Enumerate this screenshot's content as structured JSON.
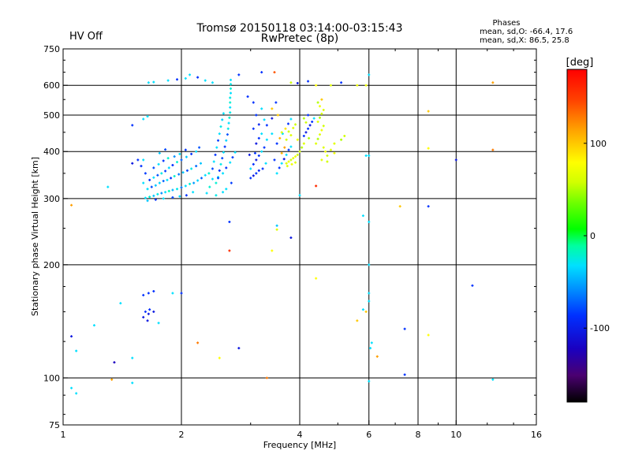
{
  "header": {
    "title": "Tromsø 20150118 03:14:00-03:15:43",
    "subtitle": "RwPretec (8p)",
    "status": "HV Off",
    "status_color": "#e00000",
    "phase_block": {
      "heading": "Phases",
      "line1": "mean, sd,O: -66.4, 17.6",
      "line2": "mean, sd,X:  86.5, 25.8"
    }
  },
  "colorbar": {
    "label": "[deg]",
    "ticks": [
      {
        "value": 100,
        "label": "100"
      },
      {
        "value": 0,
        "label": "0"
      },
      {
        "value": -100,
        "label": "-100"
      }
    ],
    "range": [
      -180,
      180
    ]
  },
  "chart_data": {
    "type": "scatter",
    "title": "Tromsø 20150118 03:14:00-03:15:43",
    "subtitle": "RwPretec (8p)",
    "xlabel": "Frequency [MHz]",
    "ylabel": "Stationary phase Virtual Height [km]",
    "xscale": "log",
    "yscale": "log",
    "xlim": [
      1,
      16
    ],
    "ylim": [
      75,
      750
    ],
    "xticks": [
      {
        "value": 1,
        "label": "1"
      },
      {
        "value": 2,
        "label": "2"
      },
      {
        "value": 4,
        "label": "4"
      },
      {
        "value": 6,
        "label": "6"
      },
      {
        "value": 8,
        "label": "8"
      },
      {
        "value": 10,
        "label": "10"
      },
      {
        "value": 16,
        "label": "16"
      }
    ],
    "yticks": [
      {
        "value": 75,
        "label": "75"
      },
      {
        "value": 100,
        "label": "100"
      },
      {
        "value": 200,
        "label": "200"
      },
      {
        "value": 300,
        "label": "300"
      },
      {
        "value": 400,
        "label": "400"
      },
      {
        "value": 500,
        "label": "500"
      },
      {
        "value": 600,
        "label": "600"
      },
      {
        "value": 750,
        "label": "750"
      }
    ],
    "vgrid": [
      2,
      4,
      6,
      8,
      10
    ],
    "hgrid": [
      100,
      200,
      300,
      400,
      500,
      600
    ],
    "grid": true,
    "color_by": "phase [deg]",
    "points": [
      [
        1.62,
        301,
        -30
      ],
      [
        1.66,
        303,
        -20
      ],
      [
        1.7,
        305,
        -40
      ],
      [
        1.74,
        308,
        -25
      ],
      [
        1.78,
        310,
        -60
      ],
      [
        1.82,
        312,
        -30
      ],
      [
        1.86,
        314,
        -15
      ],
      [
        1.9,
        316,
        -45
      ],
      [
        1.95,
        318,
        -25
      ],
      [
        2.0,
        321,
        -70
      ],
      [
        2.05,
        324,
        -30
      ],
      [
        2.1,
        328,
        -20
      ],
      [
        2.15,
        330,
        -55
      ],
      [
        2.2,
        335,
        -35
      ],
      [
        2.25,
        340,
        -80
      ],
      [
        2.3,
        346,
        -30
      ],
      [
        2.35,
        350,
        -20
      ],
      [
        1.64,
        318,
        -30
      ],
      [
        1.68,
        322,
        -90
      ],
      [
        1.72,
        325,
        -40
      ],
      [
        1.76,
        330,
        -35
      ],
      [
        1.8,
        334,
        -80
      ],
      [
        1.84,
        336,
        -30
      ],
      [
        1.88,
        340,
        -100
      ],
      [
        1.92,
        344,
        -20
      ],
      [
        1.97,
        348,
        -70
      ],
      [
        2.02,
        352,
        -40
      ],
      [
        2.07,
        356,
        -90
      ],
      [
        2.12,
        360,
        -25
      ],
      [
        2.18,
        366,
        -75
      ],
      [
        2.24,
        372,
        -40
      ],
      [
        1.66,
        336,
        -100
      ],
      [
        1.7,
        341,
        -30
      ],
      [
        1.74,
        346,
        -85
      ],
      [
        1.78,
        350,
        -25
      ],
      [
        1.82,
        355,
        -95
      ],
      [
        1.86,
        362,
        -35
      ],
      [
        1.9,
        368,
        -100
      ],
      [
        1.95,
        375,
        -20
      ],
      [
        2.0,
        380,
        -80
      ],
      [
        2.06,
        387,
        -40
      ],
      [
        2.12,
        394,
        -100
      ],
      [
        2.18,
        400,
        -30
      ],
      [
        2.22,
        410,
        -85
      ],
      [
        1.7,
        362,
        -90
      ],
      [
        1.75,
        370,
        -30
      ],
      [
        1.8,
        378,
        -100
      ],
      [
        1.85,
        384,
        -20
      ],
      [
        1.92,
        388,
        -60
      ],
      [
        1.98,
        394,
        -30
      ],
      [
        2.05,
        404,
        -100
      ],
      [
        1.76,
        396,
        -40
      ],
      [
        1.82,
        405,
        -90
      ],
      [
        1.6,
        380,
        -30
      ],
      [
        1.58,
        366,
        -100
      ],
      [
        1.62,
        350,
        -95
      ],
      [
        1.6,
        330,
        -30
      ],
      [
        1.64,
        296,
        -40
      ],
      [
        1.72,
        298,
        -100
      ],
      [
        1.8,
        300,
        -30
      ],
      [
        1.9,
        302,
        -90
      ],
      [
        1.98,
        304,
        -35
      ],
      [
        2.06,
        306,
        -100
      ],
      [
        2.14,
        312,
        -30
      ],
      [
        2.45,
        330,
        -20
      ],
      [
        2.48,
        342,
        -30
      ],
      [
        2.5,
        356,
        -100
      ],
      [
        2.52,
        370,
        -25
      ],
      [
        2.54,
        384,
        -90
      ],
      [
        2.56,
        398,
        -30
      ],
      [
        2.58,
        412,
        -100
      ],
      [
        2.6,
        428,
        -35
      ],
      [
        2.62,
        444,
        -85
      ],
      [
        2.63,
        460,
        -25
      ],
      [
        2.64,
        476,
        -30
      ],
      [
        2.65,
        492,
        -20
      ],
      [
        2.66,
        508,
        -25
      ],
      [
        2.66,
        524,
        -30
      ],
      [
        2.66,
        540,
        -20
      ],
      [
        2.66,
        556,
        -25
      ],
      [
        2.67,
        572,
        -30
      ],
      [
        2.67,
        588,
        -20
      ],
      [
        2.67,
        604,
        -25
      ],
      [
        2.67,
        620,
        -30
      ],
      [
        2.4,
        360,
        -90
      ],
      [
        2.42,
        376,
        -30
      ],
      [
        2.44,
        392,
        -100
      ],
      [
        2.46,
        410,
        -30
      ],
      [
        2.48,
        428,
        -95
      ],
      [
        2.5,
        446,
        -30
      ],
      [
        2.52,
        466,
        -25
      ],
      [
        2.54,
        486,
        -35
      ],
      [
        2.56,
        505,
        -30
      ],
      [
        2.4,
        338,
        -30
      ],
      [
        2.36,
        322,
        -20
      ],
      [
        2.32,
        310,
        -30
      ],
      [
        2.48,
        340,
        -90
      ],
      [
        2.55,
        350,
        -30
      ],
      [
        2.6,
        362,
        -100
      ],
      [
        2.66,
        374,
        -30
      ],
      [
        2.7,
        386,
        -95
      ],
      [
        2.74,
        398,
        -30
      ],
      [
        2.6,
        318,
        -30
      ],
      [
        2.68,
        330,
        -95
      ],
      [
        2.45,
        306,
        -25
      ],
      [
        2.55,
        312,
        -30
      ],
      [
        3.0,
        340,
        -100
      ],
      [
        3.05,
        345,
        -110
      ],
      [
        3.1,
        350,
        -100
      ],
      [
        3.15,
        356,
        -105
      ],
      [
        3.0,
        360,
        -30
      ],
      [
        3.05,
        370,
        -100
      ],
      [
        3.1,
        380,
        -110
      ],
      [
        3.15,
        390,
        -100
      ],
      [
        3.2,
        400,
        -30
      ],
      [
        3.25,
        410,
        -100
      ],
      [
        3.1,
        420,
        -110
      ],
      [
        3.15,
        434,
        -100
      ],
      [
        3.2,
        446,
        -30
      ],
      [
        3.05,
        460,
        -100
      ],
      [
        3.15,
        472,
        -105
      ],
      [
        3.25,
        486,
        -30
      ],
      [
        3.1,
        500,
        -100
      ],
      [
        3.2,
        520,
        -30
      ],
      [
        3.05,
        540,
        -100
      ],
      [
        2.95,
        560,
        -100
      ],
      [
        3.3,
        430,
        -30
      ],
      [
        3.4,
        446,
        -30
      ],
      [
        3.3,
        470,
        -100
      ],
      [
        3.4,
        490,
        -110
      ],
      [
        2.98,
        392,
        -110
      ],
      [
        3.08,
        396,
        -100
      ],
      [
        3.22,
        360,
        -100
      ],
      [
        3.28,
        372,
        -30
      ],
      [
        3.5,
        350,
        -30
      ],
      [
        3.55,
        362,
        -100
      ],
      [
        3.6,
        372,
        -30
      ],
      [
        3.65,
        382,
        -110
      ],
      [
        3.7,
        392,
        -30
      ],
      [
        3.75,
        404,
        -100
      ],
      [
        3.8,
        412,
        -30
      ],
      [
        3.5,
        420,
        -100
      ],
      [
        3.56,
        434,
        130
      ],
      [
        3.62,
        446,
        -30
      ],
      [
        3.68,
        460,
        110
      ],
      [
        3.74,
        474,
        -100
      ],
      [
        3.8,
        488,
        -30
      ],
      [
        3.6,
        396,
        130
      ],
      [
        3.66,
        410,
        140
      ],
      [
        3.45,
        380,
        -100
      ],
      [
        3.52,
        500,
        120
      ],
      [
        3.48,
        540,
        -100
      ],
      [
        3.4,
        520,
        120
      ],
      [
        3.45,
        650,
        160
      ],
      [
        3.7,
        372,
        80
      ],
      [
        3.75,
        376,
        90
      ],
      [
        3.8,
        380,
        70
      ],
      [
        3.85,
        384,
        80
      ],
      [
        3.9,
        388,
        90
      ],
      [
        3.95,
        392,
        70
      ],
      [
        3.72,
        366,
        80
      ],
      [
        3.82,
        370,
        90
      ],
      [
        3.9,
        374,
        80
      ],
      [
        4.0,
        400,
        70
      ],
      [
        4.05,
        410,
        60
      ],
      [
        4.1,
        420,
        80
      ],
      [
        3.95,
        430,
        90
      ],
      [
        3.8,
        442,
        80
      ],
      [
        3.75,
        452,
        70
      ],
      [
        3.85,
        462,
        80
      ],
      [
        3.9,
        472,
        70
      ],
      [
        3.6,
        450,
        80
      ],
      [
        3.7,
        430,
        70
      ],
      [
        4.1,
        440,
        -100
      ],
      [
        4.15,
        450,
        -110
      ],
      [
        4.2,
        460,
        -100
      ],
      [
        4.25,
        470,
        -110
      ],
      [
        4.3,
        480,
        -100
      ],
      [
        4.35,
        490,
        -30
      ],
      [
        4.2,
        500,
        -100
      ],
      [
        4.1,
        490,
        60
      ],
      [
        4.15,
        478,
        70
      ],
      [
        4.22,
        434,
        60
      ],
      [
        4.4,
        420,
        80
      ],
      [
        4.45,
        432,
        60
      ],
      [
        4.5,
        444,
        80
      ],
      [
        4.55,
        456,
        90
      ],
      [
        4.6,
        468,
        70
      ],
      [
        4.45,
        480,
        80
      ],
      [
        4.5,
        492,
        60
      ],
      [
        4.55,
        504,
        70
      ],
      [
        4.6,
        516,
        80
      ],
      [
        4.5,
        528,
        90
      ],
      [
        4.45,
        540,
        60
      ],
      [
        4.55,
        550,
        120
      ],
      [
        4.6,
        410,
        80
      ],
      [
        4.65,
        400,
        90
      ],
      [
        4.7,
        390,
        70
      ],
      [
        4.55,
        380,
        80
      ],
      [
        4.9,
        420,
        80
      ],
      [
        5.1,
        430,
        60
      ],
      [
        5.2,
        440,
        70
      ],
      [
        4.8,
        404,
        80
      ],
      [
        4.9,
        396,
        90
      ],
      [
        4.7,
        376,
        70
      ],
      [
        4.4,
        600,
        100
      ],
      [
        4.8,
        600,
        80
      ],
      [
        5.6,
        600,
        90
      ],
      [
        5.9,
        600,
        90
      ],
      [
        6.0,
        640,
        -30
      ],
      [
        5.1,
        610,
        -100
      ],
      [
        4.2,
        615,
        -100
      ],
      [
        3.8,
        610,
        70
      ],
      [
        3.95,
        608,
        -110
      ],
      [
        1.65,
        610,
        -30
      ],
      [
        1.7,
        612,
        -30
      ],
      [
        1.85,
        618,
        -30
      ],
      [
        1.95,
        622,
        -100
      ],
      [
        2.05,
        626,
        -30
      ],
      [
        2.1,
        640,
        -30
      ],
      [
        2.2,
        630,
        -100
      ],
      [
        2.3,
        618,
        -30
      ],
      [
        2.4,
        610,
        -30
      ],
      [
        2.8,
        640,
        -100
      ],
      [
        3.2,
        650,
        -100
      ],
      [
        1.5,
        470,
        -100
      ],
      [
        1.6,
        488,
        -30
      ],
      [
        1.64,
        496,
        -30
      ],
      [
        1.55,
        380,
        -100
      ],
      [
        1.3,
        322,
        -30
      ],
      [
        1.05,
        288,
        140
      ],
      [
        1.5,
        372,
        -110
      ],
      [
        5.9,
        390,
        -30
      ],
      [
        6.0,
        390,
        -30
      ],
      [
        4.4,
        324,
        170
      ],
      [
        4.0,
        306,
        -30
      ],
      [
        5.8,
        270,
        -30
      ],
      [
        6.0,
        260,
        -30
      ],
      [
        7.2,
        286,
        120
      ],
      [
        8.5,
        286,
        -100
      ],
      [
        8.5,
        512,
        120
      ],
      [
        12.4,
        610,
        140
      ],
      [
        12.4,
        404,
        150
      ],
      [
        10.0,
        380,
        -110
      ],
      [
        8.5,
        408,
        100
      ],
      [
        2.65,
        260,
        -100
      ],
      [
        2.65,
        218,
        170
      ],
      [
        3.4,
        218,
        100
      ],
      [
        3.5,
        254,
        -40
      ],
      [
        3.5,
        248,
        80
      ],
      [
        3.8,
        236,
        -110
      ],
      [
        6.0,
        200,
        -30
      ],
      [
        6.0,
        168,
        -30
      ],
      [
        6.0,
        160,
        -30
      ],
      [
        5.9,
        150,
        120
      ],
      [
        6.05,
        120,
        -30
      ],
      [
        6.1,
        124,
        -30
      ],
      [
        5.6,
        142,
        120
      ],
      [
        5.8,
        152,
        -30
      ],
      [
        6.3,
        114,
        140
      ],
      [
        7.4,
        102,
        -100
      ],
      [
        7.4,
        135,
        -100
      ],
      [
        8.5,
        130,
        100
      ],
      [
        11.0,
        176,
        -100
      ],
      [
        12.4,
        99,
        -30
      ],
      [
        4.4,
        184,
        100
      ],
      [
        1.05,
        129,
        -110
      ],
      [
        1.08,
        118,
        -30
      ],
      [
        1.2,
        138,
        -30
      ],
      [
        1.33,
        99,
        140
      ],
      [
        1.35,
        110,
        -120
      ],
      [
        1.4,
        158,
        -30
      ],
      [
        1.5,
        113,
        -30
      ],
      [
        1.5,
        97,
        -30
      ],
      [
        1.6,
        145,
        -110
      ],
      [
        1.62,
        150,
        -100
      ],
      [
        1.65,
        148,
        -110
      ],
      [
        1.66,
        152,
        -100
      ],
      [
        1.7,
        150,
        -110
      ],
      [
        1.64,
        142,
        -110
      ],
      [
        1.6,
        166,
        -100
      ],
      [
        1.65,
        168,
        -100
      ],
      [
        1.7,
        170,
        -100
      ],
      [
        1.75,
        140,
        -30
      ],
      [
        1.9,
        168,
        -30
      ],
      [
        2.0,
        168,
        -100
      ],
      [
        2.2,
        124,
        150
      ],
      [
        2.5,
        113,
        100
      ],
      [
        2.8,
        120,
        -110
      ],
      [
        3.3,
        100,
        150
      ],
      [
        6.0,
        98,
        -30
      ],
      [
        1.05,
        94,
        -30
      ],
      [
        1.08,
        91,
        -30
      ]
    ]
  }
}
